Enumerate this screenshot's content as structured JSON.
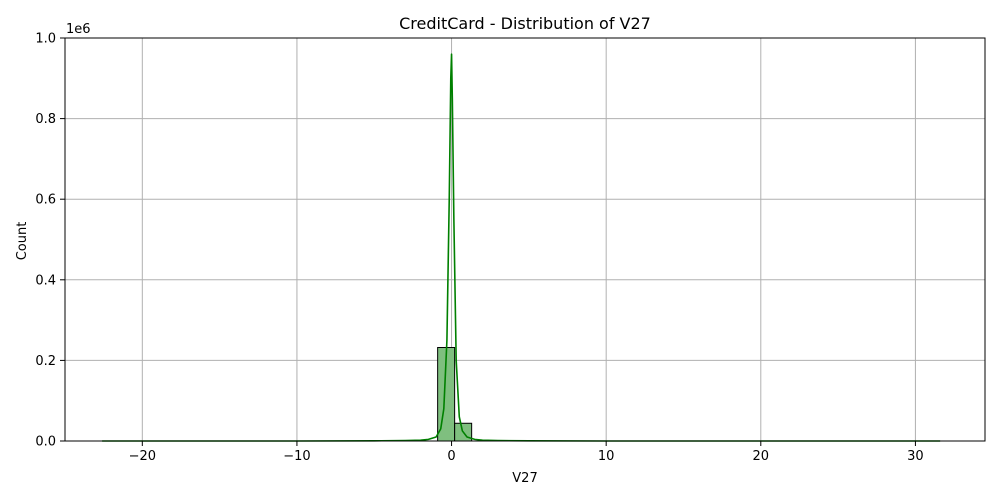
{
  "chart_data": {
    "type": "bar",
    "title": "CreditCard - Distribution of V27",
    "xlabel": "V27",
    "ylabel": "Count",
    "y_scale_label": "1e6",
    "xlim": [
      -25.0,
      34.5
    ],
    "ylim": [
      0,
      1.0
    ],
    "y_unit_multiplier": 1000000,
    "grid": true,
    "x_ticks": [
      -20,
      -10,
      0,
      10,
      20,
      30
    ],
    "x_tick_labels": [
      "−20",
      "−10",
      "0",
      "10",
      "20",
      "30"
    ],
    "y_ticks": [
      0.0,
      0.2,
      0.4,
      0.6,
      0.8,
      1.0
    ],
    "y_tick_labels": [
      "0.0",
      "0.2",
      "0.4",
      "0.6",
      "0.8",
      "1.0"
    ],
    "histogram": {
      "bin_width": 1.1,
      "bins": [
        {
          "x0": -0.9,
          "x1": 0.2,
          "count": 0.232
        },
        {
          "x0": 0.2,
          "x1": 1.3,
          "count": 0.044
        }
      ],
      "fill_color": "#7fbf7f",
      "edge_color": "#000000"
    },
    "kde": {
      "color": "#008000",
      "x": [
        -22.6,
        -10,
        -5,
        -3,
        -2,
        -1.5,
        -1,
        -0.7,
        -0.5,
        -0.3,
        -0.15,
        -0.05,
        0.0,
        0.05,
        0.15,
        0.3,
        0.5,
        0.7,
        1.0,
        1.5,
        2.0,
        3.0,
        5.0,
        10,
        20,
        31.6
      ],
      "y": [
        0.0,
        0.0,
        0.0005,
        0.001,
        0.002,
        0.004,
        0.01,
        0.03,
        0.08,
        0.25,
        0.6,
        0.9,
        0.96,
        0.85,
        0.55,
        0.2,
        0.06,
        0.025,
        0.01,
        0.004,
        0.002,
        0.001,
        0.0005,
        0.0,
        0.0,
        0.0
      ]
    }
  }
}
